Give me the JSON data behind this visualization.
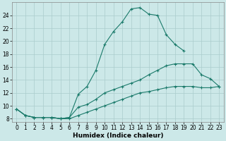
{
  "xlabel": "Humidex (Indice chaleur)",
  "bg_color": "#cce8e8",
  "grid_color": "#aacccc",
  "line_color": "#1a7a6a",
  "xlim": [
    -0.5,
    23.5
  ],
  "ylim": [
    7.5,
    26
  ],
  "xticks": [
    0,
    1,
    2,
    3,
    4,
    5,
    6,
    7,
    8,
    9,
    10,
    11,
    12,
    13,
    14,
    15,
    16,
    17,
    18,
    19,
    20,
    21,
    22,
    23
  ],
  "yticks": [
    8,
    10,
    12,
    14,
    16,
    18,
    20,
    22,
    24
  ],
  "line3_x": [
    0,
    1,
    2,
    3,
    4,
    5,
    6,
    7,
    8,
    9,
    10,
    11,
    12,
    13,
    14,
    15,
    16,
    17,
    18,
    19
  ],
  "line3_y": [
    9.5,
    8.5,
    8.2,
    8.2,
    8.2,
    8.0,
    8.2,
    11.8,
    13.0,
    15.5,
    19.5,
    21.5,
    23.0,
    25.0,
    25.2,
    24.2,
    24.0,
    21.0,
    19.5,
    18.5
  ],
  "line2_x": [
    0,
    1,
    2,
    3,
    4,
    5,
    6,
    7,
    8,
    9,
    10,
    11,
    12,
    13,
    14,
    15,
    16,
    17,
    18,
    19,
    20,
    21,
    22,
    23
  ],
  "line2_y": [
    9.5,
    8.5,
    8.2,
    8.2,
    8.2,
    8.0,
    8.2,
    9.8,
    10.2,
    11.0,
    12.0,
    12.5,
    13.0,
    13.5,
    14.0,
    14.8,
    15.5,
    16.2,
    16.5,
    16.5,
    16.5,
    14.8,
    14.2,
    13.0
  ],
  "line1_x": [
    0,
    1,
    2,
    3,
    4,
    5,
    6,
    7,
    8,
    9,
    10,
    11,
    12,
    13,
    14,
    15,
    16,
    17,
    18,
    19,
    20,
    21,
    22,
    23
  ],
  "line1_y": [
    9.5,
    8.5,
    8.2,
    8.2,
    8.2,
    8.0,
    8.0,
    8.5,
    9.0,
    9.5,
    10.0,
    10.5,
    11.0,
    11.5,
    12.0,
    12.2,
    12.5,
    12.8,
    13.0,
    13.0,
    13.0,
    12.8,
    12.8,
    13.0
  ]
}
